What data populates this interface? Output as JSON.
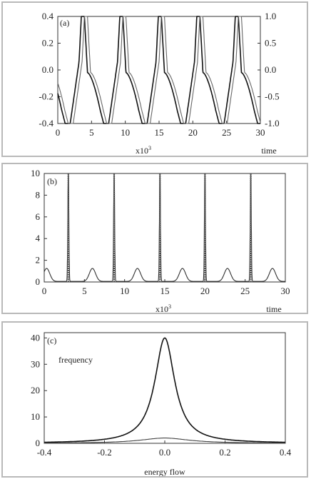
{
  "chart_data": [
    {
      "panel": "(a)",
      "type": "line",
      "xlabel": "time",
      "x_multiplier": "x10",
      "x_multiplier_exp": "3",
      "xlim": [
        0,
        30
      ],
      "ylim_left": [
        -0.4,
        0.4
      ],
      "ylim_right": [
        -1.0,
        1.0
      ],
      "xticks": [
        "0",
        "5",
        "10",
        "15",
        "20",
        "25",
        "30"
      ],
      "yticks_left": [
        "0.4",
        "0.2",
        "0.0",
        "-0.2",
        "-0.4"
      ],
      "yticks_right": [
        "1.0",
        "0.5",
        "0.0",
        "-0.5",
        "-1.0"
      ],
      "period": 5.7,
      "series": [
        {
          "axis": "left",
          "phase": 0.0
        },
        {
          "axis": "right",
          "phase": 0.45
        }
      ]
    },
    {
      "panel": "(b)",
      "type": "line",
      "xlabel": "time",
      "x_multiplier": "x10",
      "x_multiplier_exp": "3",
      "xlim": [
        0,
        30
      ],
      "ylim": [
        0,
        10
      ],
      "xticks": [
        "0",
        "5",
        "10",
        "15",
        "20",
        "25",
        "30"
      ],
      "yticks": [
        "10",
        "8",
        "6",
        "4",
        "2",
        "0"
      ],
      "spike_times": [
        3.0,
        8.7,
        14.4,
        20.0,
        25.7
      ],
      "spike_height": 10.0,
      "bump_times": [
        0.3,
        6.0,
        11.6,
        17.2,
        22.8,
        28.4
      ],
      "bump_height": 1.2
    },
    {
      "panel": "(c)",
      "type": "line",
      "xlabel": "energy flow",
      "annotation": "frequency",
      "xlim": [
        -0.4,
        0.4
      ],
      "ylim": [
        0,
        42
      ],
      "xticks": [
        "-0.4",
        "-0.2",
        "0.0",
        "0.2",
        "0.4"
      ],
      "yticks": [
        "40",
        "30",
        "20",
        "10",
        "0"
      ],
      "series": [
        {
          "peak": 40,
          "width": 0.04
        },
        {
          "peak": 2,
          "width": 0.1
        }
      ]
    }
  ]
}
